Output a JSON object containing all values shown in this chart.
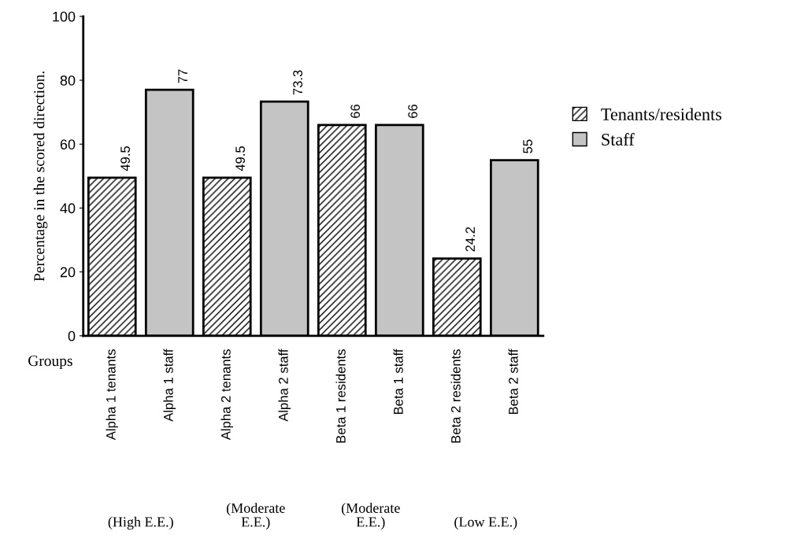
{
  "chart_data": {
    "type": "bar",
    "xlabel": "Groups",
    "ylabel": "Percentage in the scored direction.",
    "categories": [
      "Alpha 1 tenants",
      "Alpha 1 staff",
      "Alpha 2 tenants",
      "Alpha 2 staff",
      "Beta 1 residents",
      "Beta 1 staff",
      "Beta 2 residents",
      "Beta 2 staff"
    ],
    "series": [
      {
        "name": "Tenants/residents",
        "color": "#000000",
        "values": [
          49.5,
          null,
          49.5,
          null,
          66,
          null,
          24.2,
          null
        ]
      },
      {
        "name": "Staff",
        "color": "#c4c4c4",
        "values": [
          null,
          77,
          null,
          73.3,
          null,
          66,
          null,
          55
        ]
      }
    ],
    "ylim": [
      0,
      100
    ],
    "yticks": [
      0,
      20,
      40,
      60,
      80,
      100
    ],
    "data_labels": true,
    "legend": "right",
    "grid": false,
    "annotations": [
      "(High E.E.)",
      "(Moderate E.E.)",
      "(Moderate E.E.)",
      "(Low E.E.)"
    ]
  }
}
